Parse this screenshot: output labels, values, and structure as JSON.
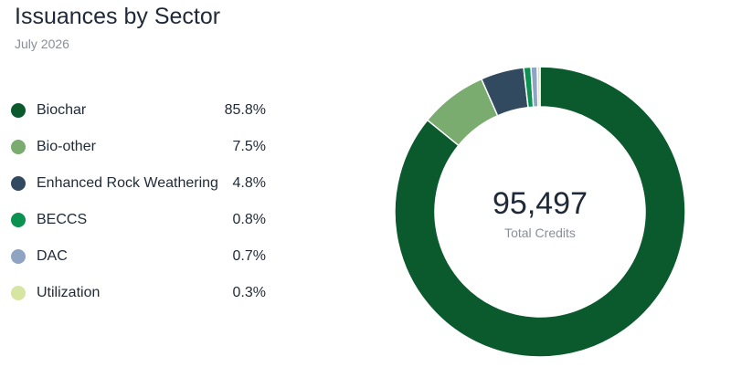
{
  "header": {
    "title": "Issuances by Sector",
    "subtitle": "July 2026"
  },
  "center": {
    "value": "95,497",
    "label": "Total Credits"
  },
  "chart_data": {
    "type": "pie",
    "title": "Issuances by Sector",
    "subtitle": "July 2026",
    "legend_position": "left",
    "categories": [
      "Biochar",
      "Bio-other",
      "Enhanced Rock Weathering",
      "BECCS",
      "DAC",
      "Utilization"
    ],
    "values": [
      85.8,
      7.5,
      4.8,
      0.8,
      0.7,
      0.3
    ],
    "value_labels": [
      "85.8%",
      "7.5%",
      "4.8%",
      "0.8%",
      "0.7%",
      "0.3%"
    ],
    "colors": [
      "#0b5a2e",
      "#7aab6f",
      "#324a5f",
      "#0b9150",
      "#8fa3c2",
      "#d7e5a3"
    ],
    "total": "95,497",
    "total_label": "Total Credits"
  }
}
